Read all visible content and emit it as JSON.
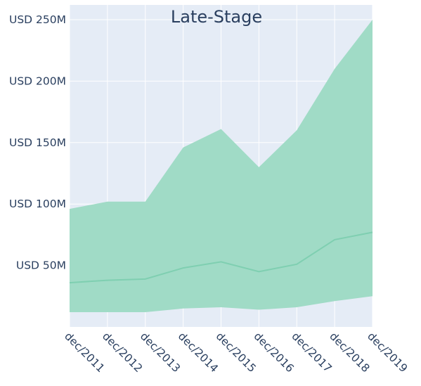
{
  "chart_data": {
    "type": "area",
    "title": "Late-Stage",
    "xlabel": "",
    "ylabel": "",
    "x": [
      "dec/2011",
      "dec/2012",
      "dec/2013",
      "dec/2014",
      "dec/2015",
      "dec/2016",
      "dec/2017",
      "dec/2018",
      "dec/2019"
    ],
    "ylim": [
      0,
      262
    ],
    "yticks": [
      50,
      100,
      150,
      200,
      250
    ],
    "ytick_labels": [
      "USD 50M",
      "USD 100M",
      "USD 150M",
      "USD 200M",
      "USD 250M"
    ],
    "series": [
      {
        "role": "upper",
        "values": [
          96,
          102,
          102,
          146,
          161,
          130,
          160,
          210,
          250
        ]
      },
      {
        "role": "median",
        "values": [
          36,
          38,
          39,
          48,
          53,
          45,
          51,
          71,
          77
        ]
      },
      {
        "role": "lower",
        "values": [
          12,
          12,
          12,
          15,
          16,
          14,
          16,
          21,
          25
        ]
      }
    ],
    "fill_color": "#a0dbc6",
    "line_color": "#7fcfb1",
    "grid": true,
    "legend": "none",
    "plot_bg": "#e5ecf6",
    "grid_color": "#ffffff"
  }
}
